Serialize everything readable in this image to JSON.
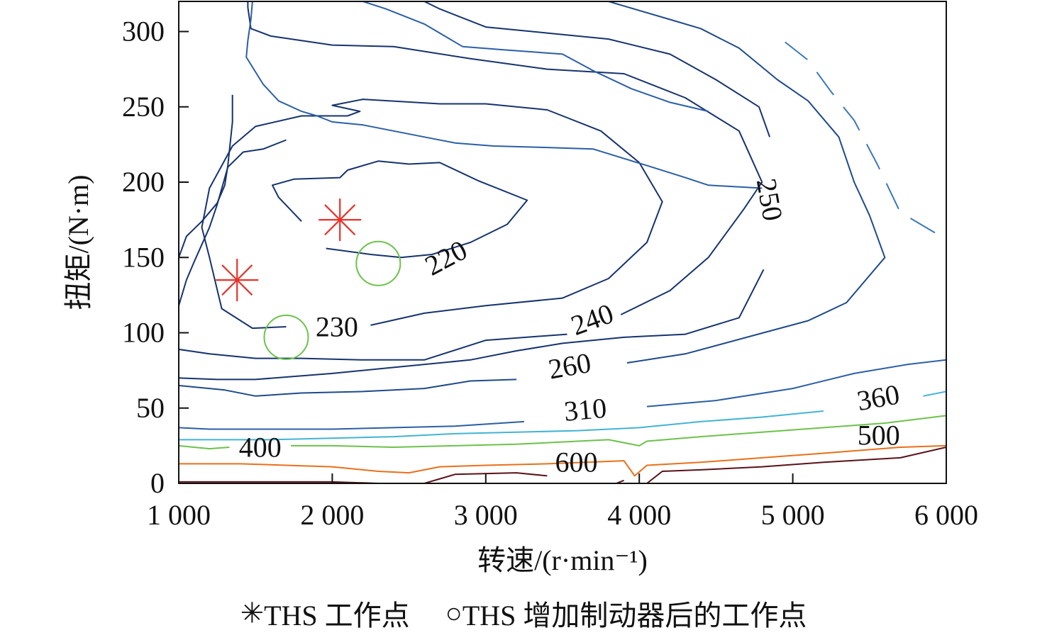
{
  "chart_data": {
    "type": "contour",
    "xlabel": "转速/(r·min⁻¹)",
    "ylabel": "扭矩/(N·m)",
    "xlim": [
      1000,
      6000
    ],
    "ylim": [
      0,
      320
    ],
    "xticks": [
      1000,
      2000,
      3000,
      4000,
      5000,
      6000
    ],
    "xtick_labels": [
      "1 000",
      "2 000",
      "3 000",
      "4 000",
      "5 000",
      "6 000"
    ],
    "yticks": [
      0,
      50,
      100,
      150,
      200,
      250,
      300
    ],
    "ytick_labels": [
      "0",
      "50",
      "100",
      "150",
      "200",
      "250",
      "300"
    ],
    "contours": [
      {
        "level": 220,
        "color": "#16336e",
        "label": "220",
        "label_at": [
          2750,
          148
        ],
        "label_angle": -28,
        "points": [
          [
            1800,
            174
          ],
          [
            1650,
            190
          ],
          [
            1610,
            198
          ],
          [
            1750,
            202
          ],
          [
            2050,
            203
          ],
          [
            2100,
            208
          ],
          [
            2300,
            214
          ],
          [
            2500,
            212
          ],
          [
            2700,
            213
          ],
          [
            2950,
            201
          ],
          [
            3270,
            188
          ],
          [
            3140,
            172
          ],
          [
            2900,
            160
          ],
          [
            2650,
            152
          ],
          [
            2450,
            150
          ],
          [
            2250,
            152
          ],
          [
            1960,
            156
          ]
        ]
      },
      {
        "level": 230,
        "color": "#16336e",
        "label": "230",
        "label_at": [
          2030,
          102
        ],
        "label_angle": 0,
        "points": [
          [
            2250,
            105
          ],
          [
            2600,
            113
          ],
          [
            3000,
            118
          ],
          [
            3500,
            123
          ],
          [
            3800,
            136
          ],
          [
            4050,
            160
          ],
          [
            4150,
            187
          ],
          [
            4000,
            213
          ],
          [
            3750,
            234
          ],
          [
            3400,
            248
          ],
          [
            3000,
            252
          ],
          [
            2700,
            252
          ],
          [
            2200,
            255
          ],
          [
            2000,
            251
          ],
          [
            2180,
            247
          ],
          [
            2100,
            244
          ],
          [
            1800,
            244
          ],
          [
            1500,
            237
          ],
          [
            1350,
            224
          ],
          [
            1200,
            196
          ],
          [
            1150,
            170
          ],
          [
            1200,
            150
          ],
          [
            1280,
            116
          ],
          [
            1480,
            103
          ],
          [
            1700,
            104
          ]
        ]
      },
      {
        "level": 240,
        "color": "#16336e",
        "label": "240",
        "label_at": [
          3700,
          107
        ],
        "label_angle": -20,
        "points": [
          [
            3530,
            99
          ],
          [
            3000,
            95
          ],
          [
            2600,
            82
          ],
          [
            2200,
            82
          ],
          [
            1800,
            83
          ],
          [
            1500,
            83
          ],
          [
            1200,
            86
          ],
          [
            1000,
            89
          ]
        ]
      },
      {
        "level": 240,
        "color": "#16336e",
        "points": [
          [
            3880,
            112
          ],
          [
            4200,
            128
          ],
          [
            4450,
            150
          ],
          [
            4680,
            182
          ],
          [
            4800,
            200
          ],
          [
            4650,
            234
          ],
          [
            4300,
            256
          ],
          [
            3900,
            272
          ],
          [
            3400,
            275
          ],
          [
            2900,
            282
          ],
          [
            2400,
            290
          ],
          [
            2000,
            291
          ],
          [
            1600,
            297
          ],
          [
            1470,
            302
          ],
          [
            1450,
            316
          ],
          [
            1450,
            320
          ]
        ]
      },
      {
        "level": 240,
        "color": "#16336e",
        "points": [
          [
            1000,
            118
          ],
          [
            1050,
            135
          ],
          [
            1100,
            147
          ],
          [
            1200,
            170
          ],
          [
            1250,
            185
          ],
          [
            1320,
            210
          ],
          [
            1420,
            220
          ],
          [
            1550,
            222
          ],
          [
            1700,
            228
          ]
        ]
      },
      {
        "level": 250,
        "color": "#16336e",
        "label": "250",
        "label_at": [
          4830,
          188
        ],
        "label_angle": 80,
        "points": [
          [
            4810,
            142
          ],
          [
            4650,
            110
          ],
          [
            4300,
            99
          ],
          [
            3900,
            97
          ],
          [
            3500,
            93
          ],
          [
            3200,
            88
          ],
          [
            2900,
            82
          ],
          [
            2400,
            77
          ],
          [
            2000,
            73
          ],
          [
            1500,
            69
          ],
          [
            1250,
            69
          ],
          [
            1000,
            70
          ]
        ]
      },
      {
        "level": 250,
        "color": "#16336e",
        "points": [
          [
            4850,
            230
          ],
          [
            4780,
            250
          ],
          [
            4500,
            268
          ],
          [
            4200,
            285
          ],
          [
            3800,
            295
          ],
          [
            3400,
            299
          ],
          [
            3000,
            303
          ],
          [
            2700,
            315
          ],
          [
            2600,
            320
          ]
        ]
      },
      {
        "level": 250,
        "color": "#16336e",
        "points": [
          [
            1000,
            150
          ],
          [
            1050,
            164
          ],
          [
            1150,
            174
          ],
          [
            1250,
            186
          ],
          [
            1300,
            198
          ],
          [
            1320,
            211
          ],
          [
            1350,
            240
          ],
          [
            1350,
            258
          ]
        ]
      },
      {
        "level": 260,
        "color": "#1e4a8a",
        "label": "260",
        "label_at": [
          3550,
          76
        ],
        "label_angle": -10,
        "points": [
          [
            3200,
            69
          ],
          [
            2900,
            68
          ],
          [
            2600,
            63
          ],
          [
            2200,
            61
          ],
          [
            1800,
            60
          ],
          [
            1500,
            58
          ],
          [
            1300,
            62
          ],
          [
            1000,
            65
          ]
        ]
      },
      {
        "level": 260,
        "color": "#1e4a8a",
        "points": [
          [
            3920,
            80
          ],
          [
            4300,
            86
          ],
          [
            4700,
            97
          ],
          [
            5100,
            108
          ],
          [
            5350,
            120
          ],
          [
            5600,
            150
          ],
          [
            5500,
            178
          ],
          [
            5400,
            200
          ],
          [
            5300,
            230
          ],
          [
            5100,
            254
          ],
          [
            4900,
            268
          ],
          [
            4650,
            289
          ],
          [
            4400,
            302
          ],
          [
            4200,
            308
          ],
          [
            4000,
            314
          ],
          [
            3800,
            320
          ]
        ]
      },
      {
        "level": 310,
        "color": "#2b5fa6",
        "label": "310",
        "label_at": [
          3650,
          47
        ],
        "label_angle": -5,
        "points": [
          [
            3250,
            41
          ],
          [
            2800,
            38
          ],
          [
            2400,
            37
          ],
          [
            2000,
            36
          ],
          [
            1600,
            36
          ],
          [
            1200,
            36
          ],
          [
            1000,
            37
          ]
        ]
      },
      {
        "level": 310,
        "color": "#2b5fa6",
        "points": [
          [
            4050,
            51
          ],
          [
            4500,
            55
          ],
          [
            5000,
            63
          ],
          [
            5400,
            73
          ],
          [
            5750,
            79
          ],
          [
            6000,
            82
          ]
        ]
      },
      {
        "level": 310,
        "color": "#2b5fa6",
        "points": [
          [
            1480,
            320
          ],
          [
            1470,
            308
          ],
          [
            1450,
            294
          ],
          [
            1440,
            283
          ],
          [
            1550,
            265
          ],
          [
            1650,
            254
          ],
          [
            1800,
            247
          ],
          [
            1900,
            244
          ],
          [
            2000,
            240
          ],
          [
            2200,
            238
          ],
          [
            2400,
            234
          ],
          [
            2600,
            230
          ],
          [
            2800,
            226
          ],
          [
            3050,
            224
          ],
          [
            3400,
            223
          ],
          [
            3700,
            222
          ],
          [
            4050,
            211
          ],
          [
            4300,
            203
          ],
          [
            4450,
            198
          ],
          [
            4800,
            196
          ]
        ]
      },
      {
        "level": 310,
        "color": "#2b5fa6",
        "points": [
          [
            2200,
            320
          ],
          [
            2350,
            315
          ],
          [
            2600,
            305
          ],
          [
            2850,
            290
          ],
          [
            3100,
            288
          ],
          [
            3500,
            285
          ],
          [
            3700,
            274
          ],
          [
            3950,
            262
          ],
          [
            4200,
            253
          ],
          [
            4450,
            247
          ]
        ]
      },
      {
        "level": 310,
        "color": "#3a78b8",
        "dashed": true,
        "points": [
          [
            4950,
            293
          ],
          [
            5100,
            281
          ],
          [
            5250,
            260
          ],
          [
            5400,
            241
          ],
          [
            5550,
            212
          ],
          [
            5700,
            180
          ],
          [
            6000,
            162
          ]
        ]
      },
      {
        "level": 360,
        "color": "#42b4d4",
        "label": "360",
        "label_at": [
          5560,
          55
        ],
        "label_angle": -10,
        "points": [
          [
            5200,
            48
          ],
          [
            4800,
            44
          ],
          [
            4400,
            41
          ],
          [
            4000,
            37
          ],
          [
            3600,
            35
          ],
          [
            3200,
            34
          ],
          [
            2800,
            33
          ],
          [
            2400,
            31
          ],
          [
            2000,
            30
          ],
          [
            1600,
            29
          ],
          [
            1200,
            29
          ],
          [
            1000,
            29
          ]
        ]
      },
      {
        "level": 360,
        "color": "#42b4d4",
        "points": [
          [
            5850,
            58
          ],
          [
            6000,
            61
          ]
        ]
      },
      {
        "level": 400,
        "color": "#6cc24a",
        "label": "400",
        "label_at": [
          1530,
          22
        ],
        "label_angle": 0,
        "points": [
          [
            1730,
            25
          ],
          [
            2000,
            25
          ],
          [
            2400,
            24
          ],
          [
            2800,
            25
          ],
          [
            3200,
            26
          ],
          [
            3600,
            28
          ],
          [
            3800,
            29
          ],
          [
            4000,
            25
          ],
          [
            4050,
            28
          ],
          [
            4400,
            31
          ],
          [
            4800,
            34
          ],
          [
            5200,
            37
          ],
          [
            5600,
            40
          ],
          [
            6000,
            45
          ]
        ]
      },
      {
        "level": 400,
        "color": "#6cc24a",
        "points": [
          [
            1000,
            25
          ],
          [
            1200,
            23
          ],
          [
            1330,
            24
          ]
        ]
      },
      {
        "level": 500,
        "color": "#e8701a",
        "label": "500",
        "label_at": [
          5560,
          30
        ],
        "label_angle": 0,
        "points": [
          [
            1000,
            13
          ],
          [
            1400,
            13
          ],
          [
            1700,
            12
          ],
          [
            2000,
            11
          ],
          [
            2300,
            8
          ],
          [
            2500,
            7
          ],
          [
            2700,
            11
          ],
          [
            3000,
            12
          ],
          [
            3400,
            13
          ],
          [
            3900,
            15
          ],
          [
            3970,
            5
          ],
          [
            4050,
            12
          ],
          [
            4400,
            14
          ],
          [
            4800,
            17
          ],
          [
            5200,
            20
          ],
          [
            5700,
            24
          ],
          [
            6000,
            25
          ]
        ]
      },
      {
        "level": 600,
        "color": "#5a1218",
        "label": "600",
        "label_at": [
          3590,
          12
        ],
        "label_angle": 0,
        "points": [
          [
            1000,
            1
          ],
          [
            1500,
            1
          ],
          [
            2000,
            1
          ],
          [
            2300,
            0
          ]
        ]
      },
      {
        "level": 600,
        "color": "#5a1218",
        "points": [
          [
            2600,
            0
          ],
          [
            2800,
            6
          ],
          [
            3200,
            7
          ],
          [
            3400,
            5
          ]
        ]
      },
      {
        "level": 600,
        "color": "#5a1218",
        "points": [
          [
            3900,
            2
          ],
          [
            3850,
            0
          ]
        ]
      },
      {
        "level": 600,
        "color": "#5a1218",
        "points": [
          [
            4050,
            0
          ],
          [
            4150,
            8
          ],
          [
            4400,
            9
          ],
          [
            4800,
            11
          ],
          [
            5200,
            14
          ],
          [
            5700,
            17
          ],
          [
            6000,
            24
          ]
        ]
      }
    ],
    "markers": [
      {
        "symbol": "star",
        "color": "#e8322a",
        "x": 1380,
        "y": 135
      },
      {
        "symbol": "star",
        "color": "#e8322a",
        "x": 2050,
        "y": 175
      },
      {
        "symbol": "circle",
        "color": "#6cc24a",
        "x": 2300,
        "y": 146
      },
      {
        "symbol": "circle",
        "color": "#6cc24a",
        "x": 1700,
        "y": 97
      }
    ],
    "legend": {
      "placement": "bottom",
      "entries": [
        {
          "symbol": "star",
          "text": "THS 工作点"
        },
        {
          "symbol": "circle",
          "text": "THS 增加制动器后的工作点"
        }
      ]
    }
  }
}
